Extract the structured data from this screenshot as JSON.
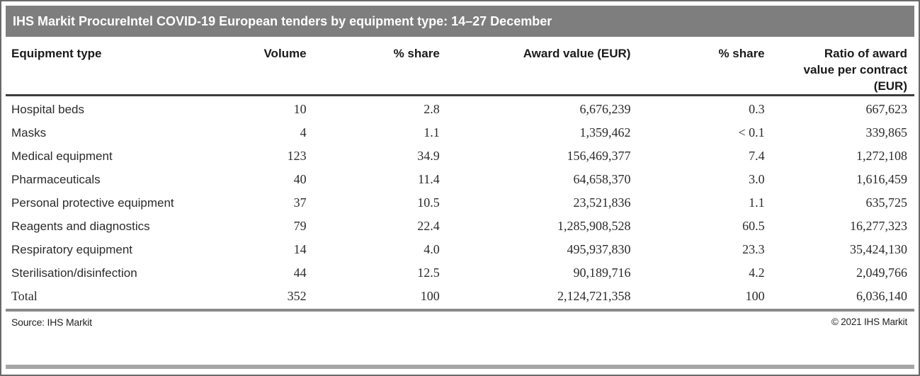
{
  "chart_data": {
    "type": "table",
    "title": "IHS Markit ProcureIntel COVID-19 European tenders by equipment type: 14–27 December",
    "columns": [
      "Equipment type",
      "Volume",
      "% share",
      "Award value (EUR)",
      "% share",
      "Ratio of award value per contract (EUR)"
    ],
    "rows": [
      [
        "Hospital beds",
        "10",
        "2.8",
        "6,676,239",
        "0.3",
        "667,623"
      ],
      [
        "Masks",
        "4",
        "1.1",
        "1,359,462",
        "< 0.1",
        "339,865"
      ],
      [
        "Medical equipment",
        "123",
        "34.9",
        "156,469,377",
        "7.4",
        "1,272,108"
      ],
      [
        "Pharmaceuticals",
        "40",
        "11.4",
        "64,658,370",
        "3.0",
        "1,616,459"
      ],
      [
        "Personal protective equipment",
        "37",
        "10.5",
        "23,521,836",
        "1.1",
        "635,725"
      ],
      [
        "Reagents and diagnostics",
        "79",
        "22.4",
        "1,285,908,528",
        "60.5",
        "16,277,323"
      ],
      [
        "Respiratory equipment",
        "14",
        "4.0",
        "495,937,830",
        "23.3",
        "35,424,130"
      ],
      [
        "Sterilisation/disinfection",
        "44",
        "12.5",
        "90,189,716",
        "4.2",
        "2,049,766"
      ]
    ],
    "total": [
      "Total",
      "352",
      "100",
      "2,124,721,358",
      "100",
      "6,036,140"
    ],
    "source": "Source: IHS Markit",
    "copyright": "© 2021 IHS Markit",
    "layout_hints": "title bar gray, no gridlines between data rows, dark rule under header, gray rule under total"
  },
  "colors": {
    "title_bar_bg": "#7e7e7e",
    "title_text": "#ffffff",
    "header_rule": "#3d3d3d",
    "total_rule": "#8a8a8a",
    "bottom_bar": "#a6a6a6",
    "body_text": "#2b2b2b",
    "header_text": "#1a1a1a",
    "frame_border": "#6a6a6a"
  }
}
